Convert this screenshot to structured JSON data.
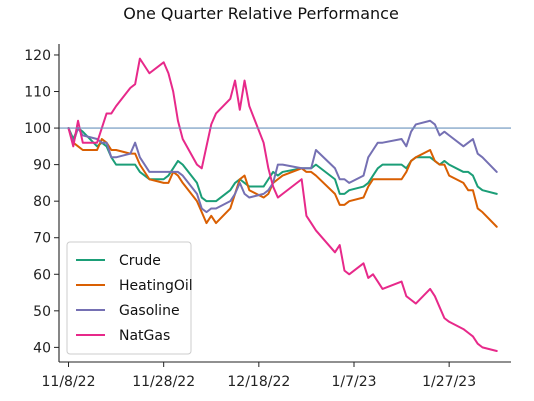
{
  "chart_data": {
    "type": "line",
    "title": "One Quarter Relative Performance",
    "xlabel": "",
    "ylabel": "",
    "x_start": "2022-11-08",
    "x_end": "2023-02-06",
    "xlim": [
      "2022-11-06",
      "2023-02-09"
    ],
    "ylim": [
      36,
      123
    ],
    "x_ticks": [
      "2022-11-08",
      "2022-11-28",
      "2022-12-18",
      "2023-01-07",
      "2023-01-27"
    ],
    "x_tick_labels": [
      "11/8/22",
      "11/28/22",
      "12/18/22",
      "1/7/23",
      "1/27/23"
    ],
    "y_ticks": [
      40,
      50,
      60,
      70,
      80,
      90,
      100,
      110,
      120
    ],
    "y_tick_labels": [
      "40",
      "50",
      "60",
      "70",
      "80",
      "90",
      "100",
      "110",
      "120"
    ],
    "reference_line": {
      "y": 100,
      "color": "#6b93bd"
    },
    "grid": false,
    "legend_position": "lower left",
    "series": [
      {
        "name": "Crude",
        "color": "#1b9e77",
        "points": [
          [
            "2022-11-08",
            100
          ],
          [
            "2022-11-09",
            97
          ],
          [
            "2022-11-10",
            100
          ],
          [
            "2022-11-11",
            99
          ],
          [
            "2022-11-14",
            95
          ],
          [
            "2022-11-15",
            96
          ],
          [
            "2022-11-16",
            95
          ],
          [
            "2022-11-17",
            92
          ],
          [
            "2022-11-18",
            90
          ],
          [
            "2022-11-21",
            90
          ],
          [
            "2022-11-22",
            90
          ],
          [
            "2022-11-23",
            88
          ],
          [
            "2022-11-25",
            86
          ],
          [
            "2022-11-28",
            86
          ],
          [
            "2022-11-29",
            87
          ],
          [
            "2022-11-30",
            89
          ],
          [
            "2022-12-01",
            91
          ],
          [
            "2022-12-02",
            90
          ],
          [
            "2022-12-05",
            85
          ],
          [
            "2022-12-06",
            81
          ],
          [
            "2022-12-07",
            80
          ],
          [
            "2022-12-08",
            80
          ],
          [
            "2022-12-09",
            80
          ],
          [
            "2022-12-12",
            83
          ],
          [
            "2022-12-13",
            85
          ],
          [
            "2022-12-14",
            86
          ],
          [
            "2022-12-15",
            85
          ],
          [
            "2022-12-16",
            84
          ],
          [
            "2022-12-19",
            84
          ],
          [
            "2022-12-20",
            86
          ],
          [
            "2022-12-21",
            88
          ],
          [
            "2022-12-22",
            87
          ],
          [
            "2022-12-23",
            88
          ],
          [
            "2022-12-27",
            89
          ],
          [
            "2022-12-28",
            89
          ],
          [
            "2022-12-29",
            89
          ],
          [
            "2022-12-30",
            90
          ],
          [
            "2023-01-03",
            86
          ],
          [
            "2023-01-04",
            82
          ],
          [
            "2023-01-05",
            82
          ],
          [
            "2023-01-06",
            83
          ],
          [
            "2023-01-09",
            84
          ],
          [
            "2023-01-10",
            85
          ],
          [
            "2023-01-11",
            87
          ],
          [
            "2023-01-12",
            89
          ],
          [
            "2023-01-13",
            90
          ],
          [
            "2023-01-17",
            90
          ],
          [
            "2023-01-18",
            89
          ],
          [
            "2023-01-19",
            91
          ],
          [
            "2023-01-20",
            92
          ],
          [
            "2023-01-23",
            92
          ],
          [
            "2023-01-24",
            91
          ],
          [
            "2023-01-25",
            90
          ],
          [
            "2023-01-26",
            91
          ],
          [
            "2023-01-27",
            90
          ],
          [
            "2023-01-30",
            88
          ],
          [
            "2023-01-31",
            88
          ],
          [
            "2023-02-01",
            87
          ],
          [
            "2023-02-02",
            84
          ],
          [
            "2023-02-03",
            83
          ],
          [
            "2023-02-06",
            82
          ]
        ]
      },
      {
        "name": "HeatingOil",
        "color": "#d95f02",
        "points": [
          [
            "2022-11-08",
            100
          ],
          [
            "2022-11-09",
            96
          ],
          [
            "2022-11-10",
            95
          ],
          [
            "2022-11-11",
            94
          ],
          [
            "2022-11-14",
            94
          ],
          [
            "2022-11-15",
            97
          ],
          [
            "2022-11-16",
            96
          ],
          [
            "2022-11-17",
            94
          ],
          [
            "2022-11-18",
            94
          ],
          [
            "2022-11-21",
            93
          ],
          [
            "2022-11-22",
            93
          ],
          [
            "2022-11-23",
            90
          ],
          [
            "2022-11-25",
            86
          ],
          [
            "2022-11-28",
            85
          ],
          [
            "2022-11-29",
            85
          ],
          [
            "2022-11-30",
            88
          ],
          [
            "2022-12-01",
            87
          ],
          [
            "2022-12-02",
            85
          ],
          [
            "2022-12-05",
            80
          ],
          [
            "2022-12-06",
            77
          ],
          [
            "2022-12-07",
            74
          ],
          [
            "2022-12-08",
            76
          ],
          [
            "2022-12-09",
            74
          ],
          [
            "2022-12-12",
            78
          ],
          [
            "2022-12-13",
            82
          ],
          [
            "2022-12-14",
            86
          ],
          [
            "2022-12-15",
            87
          ],
          [
            "2022-12-16",
            83
          ],
          [
            "2022-12-19",
            81
          ],
          [
            "2022-12-20",
            82
          ],
          [
            "2022-12-21",
            85
          ],
          [
            "2022-12-22",
            86
          ],
          [
            "2022-12-23",
            87
          ],
          [
            "2022-12-27",
            89
          ],
          [
            "2022-12-28",
            88
          ],
          [
            "2022-12-29",
            88
          ],
          [
            "2022-12-30",
            87
          ],
          [
            "2023-01-03",
            82
          ],
          [
            "2023-01-04",
            79
          ],
          [
            "2023-01-05",
            79
          ],
          [
            "2023-01-06",
            80
          ],
          [
            "2023-01-09",
            81
          ],
          [
            "2023-01-10",
            84
          ],
          [
            "2023-01-11",
            86
          ],
          [
            "2023-01-12",
            86
          ],
          [
            "2023-01-13",
            86
          ],
          [
            "2023-01-17",
            86
          ],
          [
            "2023-01-18",
            88
          ],
          [
            "2023-01-19",
            91
          ],
          [
            "2023-01-20",
            92
          ],
          [
            "2023-01-23",
            94
          ],
          [
            "2023-01-24",
            91
          ],
          [
            "2023-01-25",
            90
          ],
          [
            "2023-01-26",
            90
          ],
          [
            "2023-01-27",
            87
          ],
          [
            "2023-01-30",
            85
          ],
          [
            "2023-01-31",
            83
          ],
          [
            "2023-02-01",
            83
          ],
          [
            "2023-02-02",
            78
          ],
          [
            "2023-02-03",
            77
          ],
          [
            "2023-02-06",
            73
          ]
        ]
      },
      {
        "name": "Gasoline",
        "color": "#7570b3",
        "points": [
          [
            "2022-11-08",
            100
          ],
          [
            "2022-11-09",
            96
          ],
          [
            "2022-11-10",
            100
          ],
          [
            "2022-11-11",
            98
          ],
          [
            "2022-11-14",
            97
          ],
          [
            "2022-11-15",
            96
          ],
          [
            "2022-11-16",
            96
          ],
          [
            "2022-11-17",
            92
          ],
          [
            "2022-11-18",
            92
          ],
          [
            "2022-11-21",
            93
          ],
          [
            "2022-11-22",
            96
          ],
          [
            "2022-11-23",
            92
          ],
          [
            "2022-11-25",
            88
          ],
          [
            "2022-11-28",
            88
          ],
          [
            "2022-11-29",
            88
          ],
          [
            "2022-11-30",
            88
          ],
          [
            "2022-12-01",
            88
          ],
          [
            "2022-12-02",
            87
          ],
          [
            "2022-12-05",
            82
          ],
          [
            "2022-12-06",
            78
          ],
          [
            "2022-12-07",
            77
          ],
          [
            "2022-12-08",
            78
          ],
          [
            "2022-12-09",
            78
          ],
          [
            "2022-12-12",
            80
          ],
          [
            "2022-12-13",
            82
          ],
          [
            "2022-12-14",
            85
          ],
          [
            "2022-12-15",
            82
          ],
          [
            "2022-12-16",
            81
          ],
          [
            "2022-12-19",
            82
          ],
          [
            "2022-12-20",
            83
          ],
          [
            "2022-12-21",
            85
          ],
          [
            "2022-12-22",
            90
          ],
          [
            "2022-12-23",
            90
          ],
          [
            "2022-12-27",
            89
          ],
          [
            "2022-12-28",
            89
          ],
          [
            "2022-12-29",
            89
          ],
          [
            "2022-12-30",
            94
          ],
          [
            "2023-01-03",
            89
          ],
          [
            "2023-01-04",
            86
          ],
          [
            "2023-01-05",
            86
          ],
          [
            "2023-01-06",
            85
          ],
          [
            "2023-01-09",
            87
          ],
          [
            "2023-01-10",
            92
          ],
          [
            "2023-01-11",
            94
          ],
          [
            "2023-01-12",
            96
          ],
          [
            "2023-01-13",
            96
          ],
          [
            "2023-01-17",
            97
          ],
          [
            "2023-01-18",
            95
          ],
          [
            "2023-01-19",
            99
          ],
          [
            "2023-01-20",
            101
          ],
          [
            "2023-01-23",
            102
          ],
          [
            "2023-01-24",
            101
          ],
          [
            "2023-01-25",
            98
          ],
          [
            "2023-01-26",
            99
          ],
          [
            "2023-01-27",
            98
          ],
          [
            "2023-01-30",
            95
          ],
          [
            "2023-01-31",
            96
          ],
          [
            "2023-02-01",
            97
          ],
          [
            "2023-02-02",
            93
          ],
          [
            "2023-02-03",
            92
          ],
          [
            "2023-02-06",
            88
          ]
        ]
      },
      {
        "name": "NatGas",
        "color": "#e7298a",
        "points": [
          [
            "2022-11-08",
            100
          ],
          [
            "2022-11-09",
            95
          ],
          [
            "2022-11-10",
            102
          ],
          [
            "2022-11-11",
            96
          ],
          [
            "2022-11-14",
            96
          ],
          [
            "2022-11-15",
            100
          ],
          [
            "2022-11-16",
            104
          ],
          [
            "2022-11-17",
            104
          ],
          [
            "2022-11-18",
            106
          ],
          [
            "2022-11-21",
            111
          ],
          [
            "2022-11-22",
            112
          ],
          [
            "2022-11-23",
            119
          ],
          [
            "2022-11-25",
            115
          ],
          [
            "2022-11-28",
            118
          ],
          [
            "2022-11-29",
            115
          ],
          [
            "2022-11-30",
            110
          ],
          [
            "2022-12-01",
            102
          ],
          [
            "2022-12-02",
            97
          ],
          [
            "2022-12-05",
            90
          ],
          [
            "2022-12-06",
            89
          ],
          [
            "2022-12-07",
            95
          ],
          [
            "2022-12-08",
            101
          ],
          [
            "2022-12-09",
            104
          ],
          [
            "2022-12-12",
            108
          ],
          [
            "2022-12-13",
            113
          ],
          [
            "2022-12-14",
            105
          ],
          [
            "2022-12-15",
            113
          ],
          [
            "2022-12-16",
            106
          ],
          [
            "2022-12-19",
            96
          ],
          [
            "2022-12-20",
            89
          ],
          [
            "2022-12-21",
            84
          ],
          [
            "2022-12-22",
            81
          ],
          [
            "2022-12-23",
            82
          ],
          [
            "2022-12-27",
            86
          ],
          [
            "2022-12-28",
            76
          ],
          [
            "2022-12-29",
            74
          ],
          [
            "2022-12-30",
            72
          ],
          [
            "2023-01-03",
            66
          ],
          [
            "2023-01-04",
            68
          ],
          [
            "2023-01-05",
            61
          ],
          [
            "2023-01-06",
            60
          ],
          [
            "2023-01-09",
            63
          ],
          [
            "2023-01-10",
            59
          ],
          [
            "2023-01-11",
            60
          ],
          [
            "2023-01-12",
            58
          ],
          [
            "2023-01-13",
            56
          ],
          [
            "2023-01-17",
            58
          ],
          [
            "2023-01-18",
            54
          ],
          [
            "2023-01-19",
            53
          ],
          [
            "2023-01-20",
            52
          ],
          [
            "2023-01-23",
            56
          ],
          [
            "2023-01-24",
            54
          ],
          [
            "2023-01-25",
            51
          ],
          [
            "2023-01-26",
            48
          ],
          [
            "2023-01-27",
            47
          ],
          [
            "2023-01-30",
            45
          ],
          [
            "2023-01-31",
            44
          ],
          [
            "2023-02-01",
            43
          ],
          [
            "2023-02-02",
            41
          ],
          [
            "2023-02-03",
            40
          ],
          [
            "2023-02-06",
            39
          ]
        ]
      }
    ]
  }
}
